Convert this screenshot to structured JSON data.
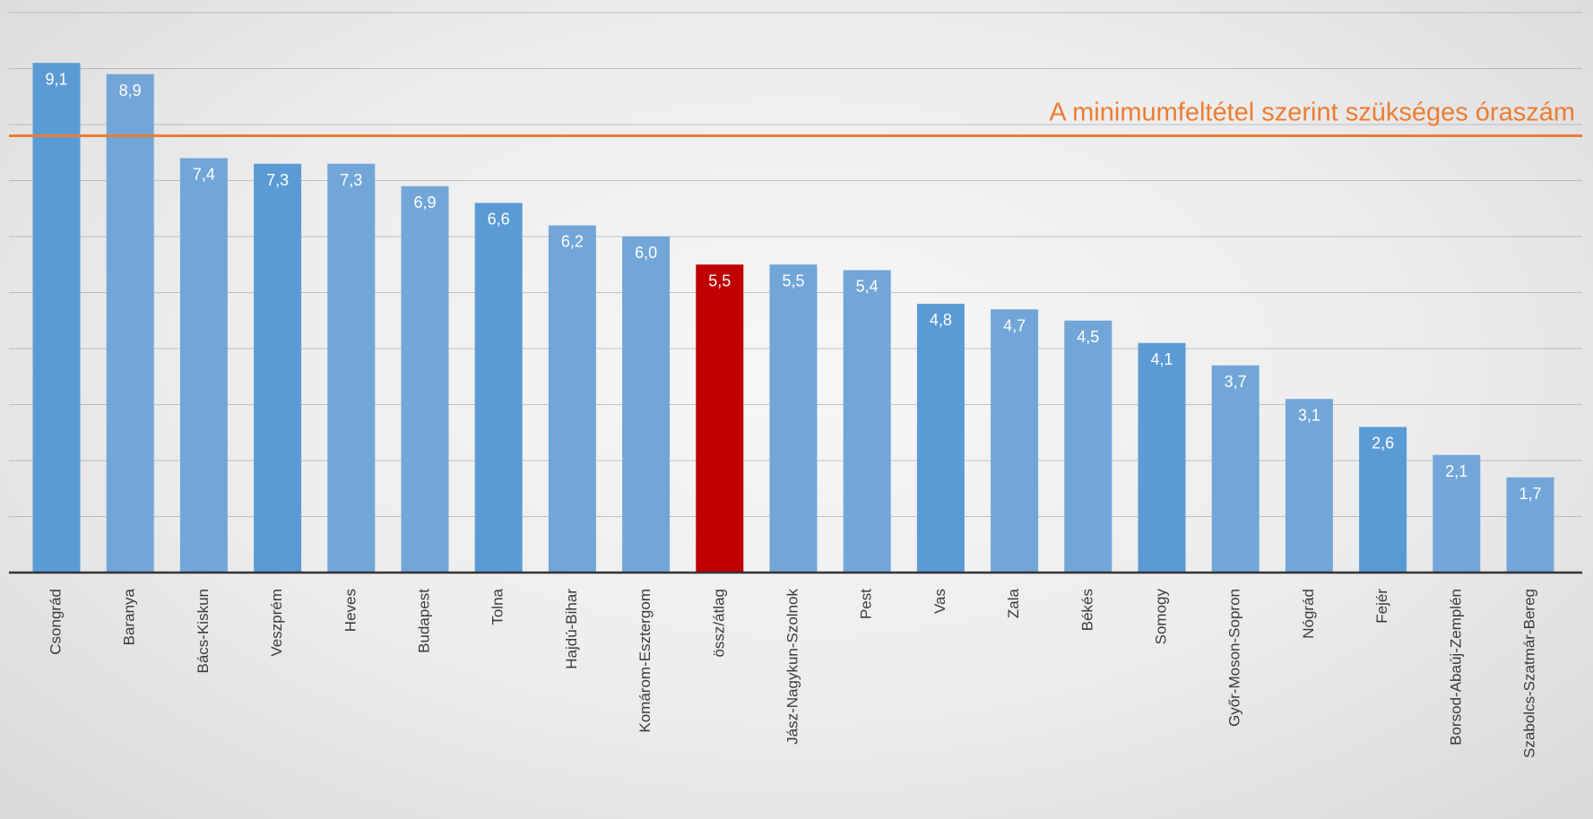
{
  "chart_data": {
    "type": "bar",
    "categories": [
      "Csongrád",
      "Baranya",
      "Bács-Kiskun",
      "Veszprém",
      "Heves",
      "Budapest",
      "Tolna",
      "Hajdú-Bihar",
      "Komárom-Esztergom",
      "össz/átlag",
      "Jász-Nagykun-Szolnok",
      "Pest",
      "Vas",
      "Zala",
      "Békés",
      "Somogy",
      "Győr-Moson-Sopron",
      "Nógrád",
      "Fejér",
      "Borsod-Abaúj-Zemplén",
      "Szabolcs-Szatmár-Bereg"
    ],
    "values": [
      9.1,
      8.9,
      7.4,
      7.3,
      7.3,
      6.9,
      6.6,
      6.2,
      6.0,
      5.5,
      5.5,
      5.4,
      4.8,
      4.7,
      4.5,
      4.1,
      3.7,
      3.1,
      2.6,
      2.1,
      1.7
    ],
    "value_labels": [
      "9,1",
      "8,9",
      "7,4",
      "7,3",
      "7,3",
      "6,9",
      "6,6",
      "6,2",
      "6,0",
      "5,5",
      "5,5",
      "5,4",
      "4,8",
      "4,7",
      "4,5",
      "4,1",
      "3,7",
      "3,1",
      "2,6",
      "2,1",
      "1,7"
    ],
    "highlight_category": "össz/átlag",
    "reference_line": {
      "value": 7.8,
      "label": "A minimumfeltétel szerint szükséges óraszám"
    },
    "ylim": [
      0,
      10
    ],
    "gridline_step": 1,
    "grid": true,
    "legend": "none",
    "title": "",
    "xlabel": "",
    "ylabel": "",
    "colors": {
      "bar_dark": "#5b9bd5",
      "bar_light": "#72a6d8",
      "highlight": "#c00000",
      "reference": "#ed7d31"
    }
  }
}
